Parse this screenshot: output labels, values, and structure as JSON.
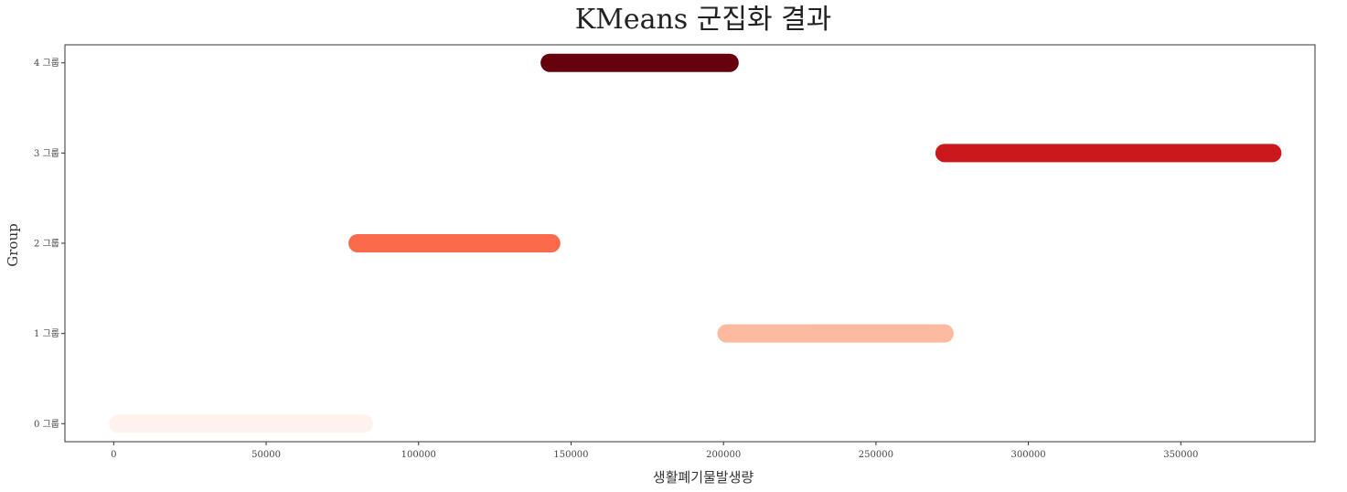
{
  "chart_data": {
    "type": "scatter",
    "title": "KMeans 군집화 결과",
    "xlabel": "생활폐기물발생량",
    "ylabel": "Group",
    "xlim": [
      -16000,
      394000
    ],
    "ylim": [
      -0.2,
      4.2
    ],
    "x_ticks": [
      0,
      50000,
      100000,
      150000,
      200000,
      250000,
      300000,
      350000
    ],
    "y_ticks": [
      0,
      1,
      2,
      3,
      4
    ],
    "y_tick_labels": [
      "0 그룹",
      "1 그룹",
      "2 그룹",
      "3 그룹",
      "4 그룹"
    ],
    "grid": false,
    "series": [
      {
        "group": 0,
        "x_min": 1500,
        "x_max": 82000,
        "color": "#fff1ec"
      },
      {
        "group": 1,
        "x_min": 201000,
        "x_max": 272500,
        "color": "#fcbba1"
      },
      {
        "group": 2,
        "x_min": 80000,
        "x_max": 143500,
        "color": "#fb6a4a"
      },
      {
        "group": 3,
        "x_min": 272500,
        "x_max": 380000,
        "color": "#cb181d"
      },
      {
        "group": 4,
        "x_min": 143000,
        "x_max": 202000,
        "color": "#67000d"
      }
    ]
  }
}
